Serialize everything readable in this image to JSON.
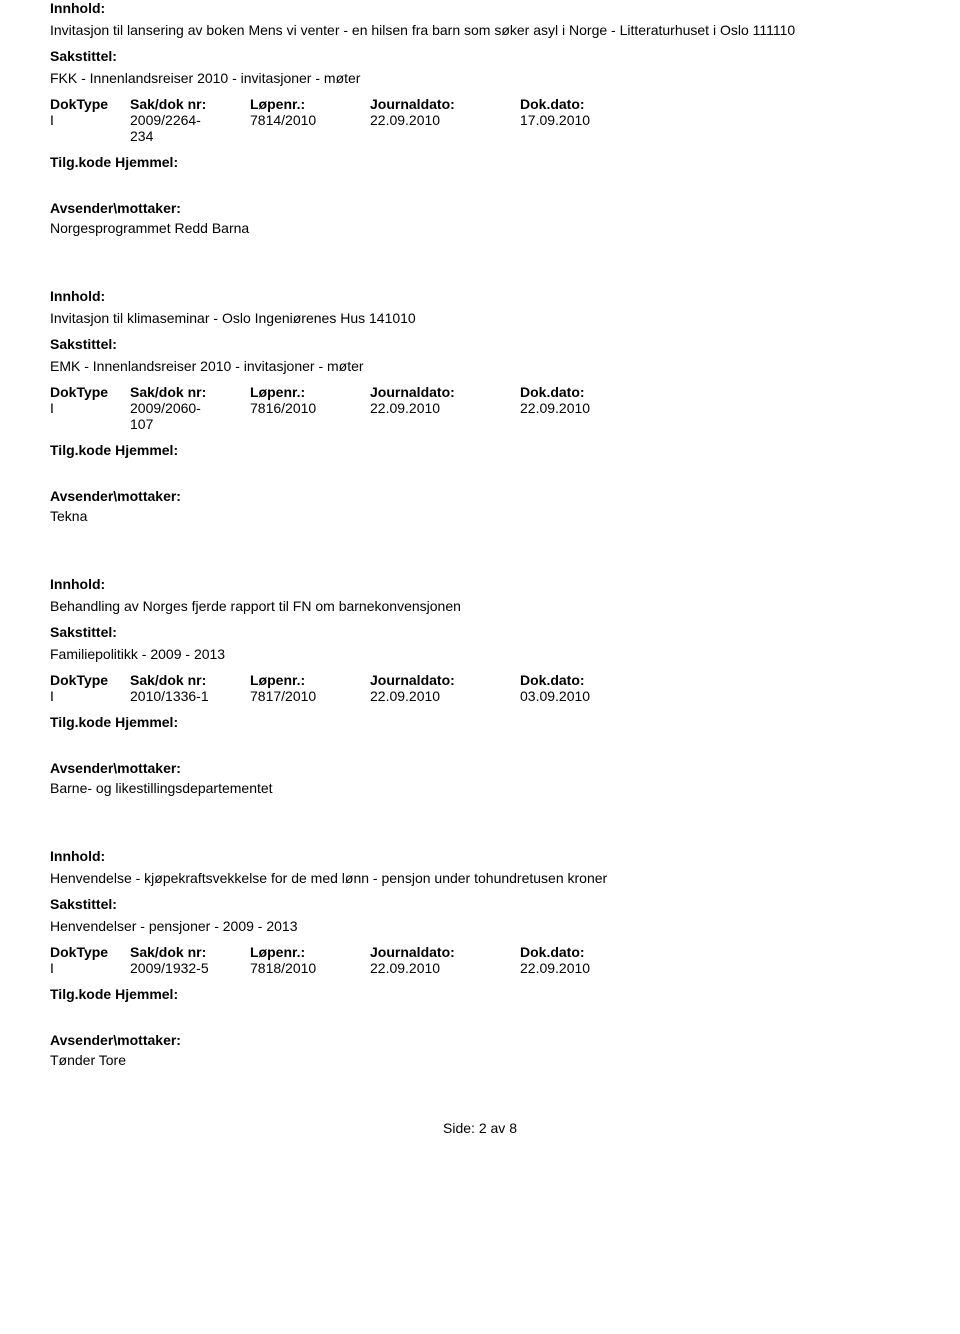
{
  "labels": {
    "innhold": "Innhold:",
    "sakstittel": "Sakstittel:",
    "doktype": "DokType",
    "sakdok": "Sak/dok nr:",
    "lpenr": "Løpenr.:",
    "journaldato": "Journaldato:",
    "dokdato": "Dok.dato:",
    "tilg": "Tilg.kode Hjemmel:",
    "avsender": "Avsender\\mottaker:"
  },
  "records": [
    {
      "innhold": "Invitasjon til lansering av boken Mens vi venter - en hilsen fra barn som søker asyl i Norge - Litteraturhuset i Oslo 111110",
      "sakstittel": "FKK - Innenlandsreiser 2010 - invitasjoner - møter",
      "doktype": "I",
      "sakdok": [
        "2009/2264-",
        "234"
      ],
      "lpenr": "7814/2010",
      "journaldato": "22.09.2010",
      "dokdato": "17.09.2010",
      "avsender": "Norgesprogrammet Redd Barna"
    },
    {
      "innhold": "Invitasjon til klimaseminar - Oslo Ingeniørenes Hus 141010",
      "sakstittel": "EMK - Innenlandsreiser 2010 - invitasjoner - møter",
      "doktype": "I",
      "sakdok": [
        "2009/2060-",
        "107"
      ],
      "lpenr": "7816/2010",
      "journaldato": "22.09.2010",
      "dokdato": "22.09.2010",
      "avsender": "Tekna"
    },
    {
      "innhold": "Behandling av Norges fjerde rapport til FN om barnekonvensjonen",
      "sakstittel": "Familiepolitikk - 2009 - 2013",
      "doktype": "I",
      "sakdok": [
        "2010/1336-1"
      ],
      "lpenr": "7817/2010",
      "journaldato": "22.09.2010",
      "dokdato": "03.09.2010",
      "avsender": "Barne- og likestillingsdepartementet"
    },
    {
      "innhold": "Henvendelse - kjøpekraftsvekkelse for de med lønn - pensjon under tohundretusen kroner",
      "sakstittel": "Henvendelser - pensjoner - 2009 - 2013",
      "doktype": "I",
      "sakdok": [
        "2009/1932-5"
      ],
      "lpenr": "7818/2010",
      "journaldato": "22.09.2010",
      "dokdato": "22.09.2010",
      "avsender": "Tønder Tore"
    }
  ],
  "footer": {
    "side_label": "Side:",
    "page_current": "2",
    "av": "av",
    "page_total": "8"
  }
}
